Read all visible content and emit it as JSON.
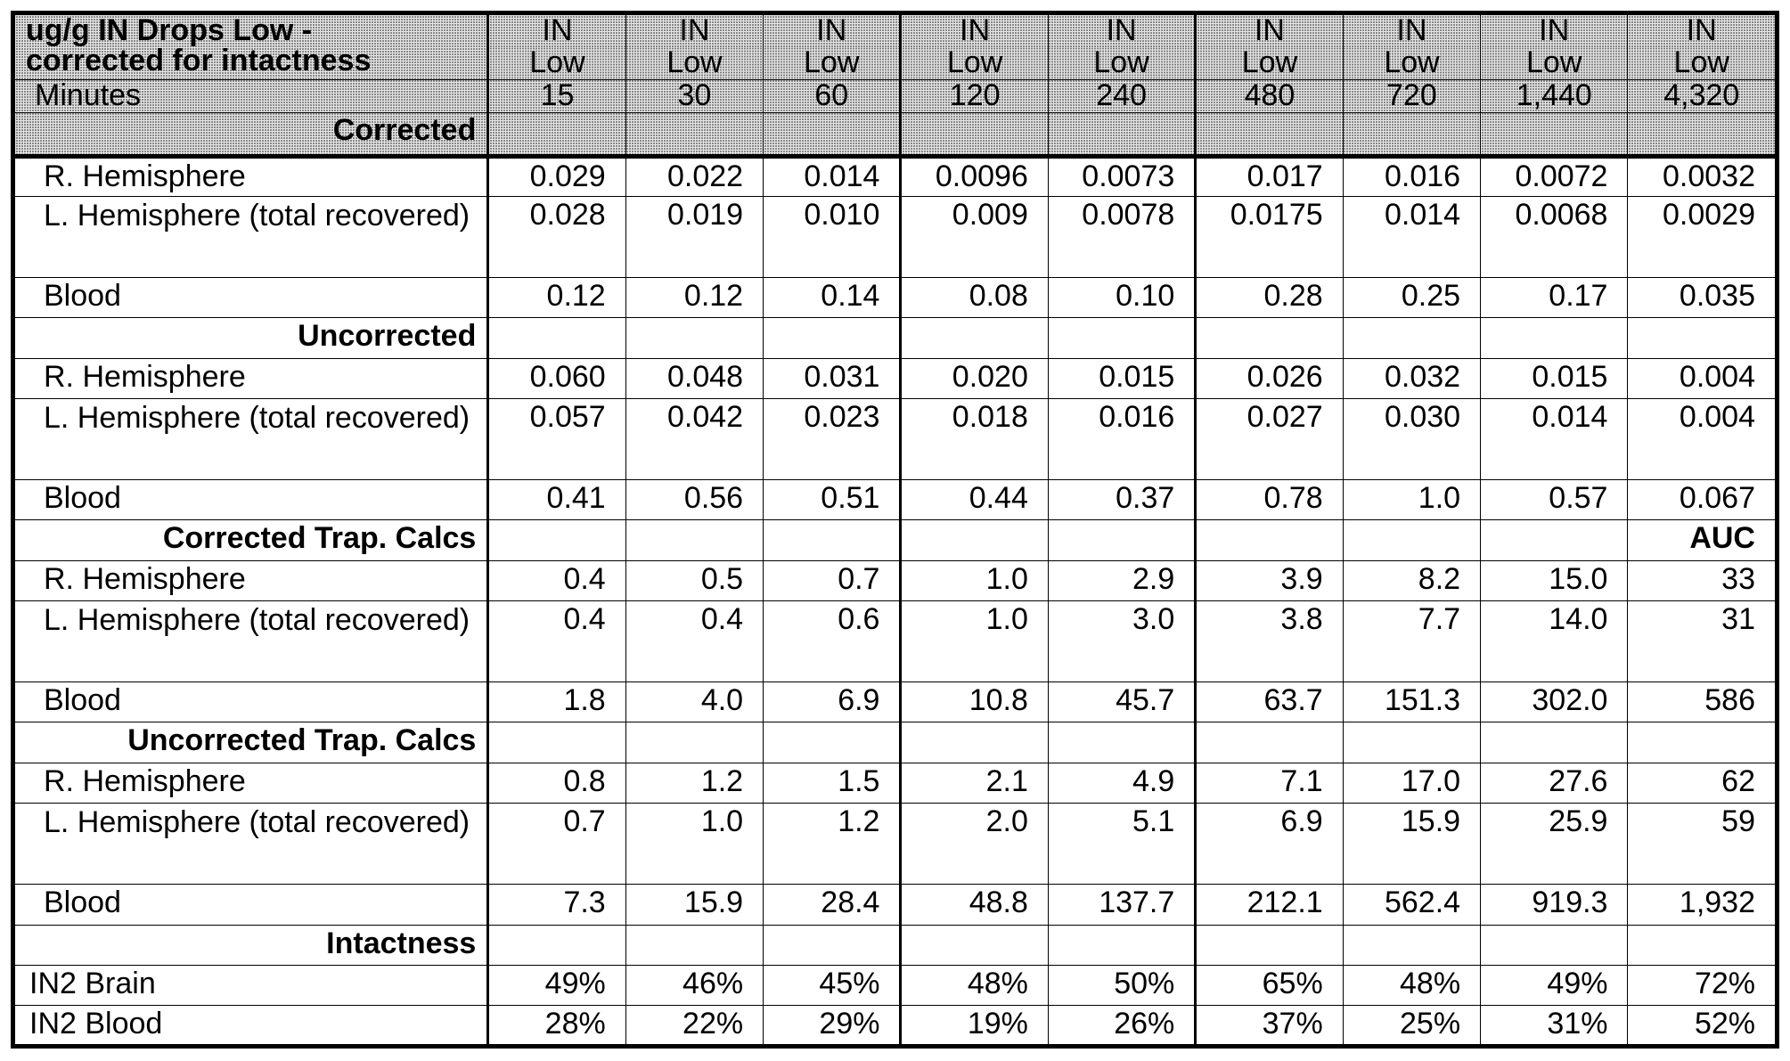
{
  "table": {
    "title_line1": "ug/g IN Drops Low -",
    "title_line2": "corrected for intactness",
    "minutes_label": "Minutes",
    "corrected_label": "Corrected",
    "group_line1": "IN",
    "group_line2": "Low",
    "minutes": [
      "15",
      "30",
      "60",
      "120",
      "240",
      "480",
      "720",
      "1,440",
      "4,320"
    ],
    "sections": [
      {
        "title": "Uncorrected",
        "auc": "",
        "rows": []
      }
    ],
    "corrected_rows": [
      {
        "label": "R. Hemisphere",
        "values": [
          "0.029",
          "0.022",
          "0.014",
          "0.0096",
          "0.0073",
          "0.017",
          "0.016",
          "0.0072",
          "0.0032"
        ]
      },
      {
        "label": "L. Hemisphere (total recovered)",
        "values": [
          "0.028",
          "0.019",
          "0.010",
          "0.009",
          "0.0078",
          "0.0175",
          "0.014",
          "0.0068",
          "0.0029"
        ]
      },
      {
        "label": "Blood",
        "values": [
          "0.12",
          "0.12",
          "0.14",
          "0.08",
          "0.10",
          "0.28",
          "0.25",
          "0.17",
          "0.035"
        ]
      }
    ],
    "uncorrected_title": "Uncorrected",
    "uncorrected_rows": [
      {
        "label": "R. Hemisphere",
        "values": [
          "0.060",
          "0.048",
          "0.031",
          "0.020",
          "0.015",
          "0.026",
          "0.032",
          "0.015",
          "0.004"
        ]
      },
      {
        "label": "L. Hemisphere (total recovered)",
        "values": [
          "0.057",
          "0.042",
          "0.023",
          "0.018",
          "0.016",
          "0.027",
          "0.030",
          "0.014",
          "0.004"
        ]
      },
      {
        "label": "Blood",
        "values": [
          "0.41",
          "0.56",
          "0.51",
          "0.44",
          "0.37",
          "0.78",
          "1.0",
          "0.57",
          "0.067"
        ]
      }
    ],
    "corrected_trap_title": "Corrected Trap. Calcs",
    "auc_label": "AUC",
    "corrected_trap_rows": [
      {
        "label": "R. Hemisphere",
        "values": [
          "0.4",
          "0.5",
          "0.7",
          "1.0",
          "2.9",
          "3.9",
          "8.2",
          "15.0",
          "33"
        ]
      },
      {
        "label": "L. Hemisphere (total recovered)",
        "values": [
          "0.4",
          "0.4",
          "0.6",
          "1.0",
          "3.0",
          "3.8",
          "7.7",
          "14.0",
          "31"
        ]
      },
      {
        "label": "Blood",
        "values": [
          "1.8",
          "4.0",
          "6.9",
          "10.8",
          "45.7",
          "63.7",
          "151.3",
          "302.0",
          "586"
        ]
      }
    ],
    "uncorrected_trap_title": "Uncorrected Trap. Calcs",
    "uncorrected_trap_rows": [
      {
        "label": "R. Hemisphere",
        "values": [
          "0.8",
          "1.2",
          "1.5",
          "2.1",
          "4.9",
          "7.1",
          "17.0",
          "27.6",
          "62"
        ]
      },
      {
        "label": "L. Hemisphere (total recovered)",
        "values": [
          "0.7",
          "1.0",
          "1.2",
          "2.0",
          "5.1",
          "6.9",
          "15.9",
          "25.9",
          "59"
        ]
      },
      {
        "label": "Blood",
        "values": [
          "7.3",
          "15.9",
          "28.4",
          "48.8",
          "137.7",
          "212.1",
          "562.4",
          "919.3",
          "1,932"
        ]
      }
    ],
    "intactness_title": "Intactness",
    "intactness_rows": [
      {
        "label": "IN2 Brain",
        "values": [
          "49%",
          "46%",
          "45%",
          "48%",
          "50%",
          "65%",
          "48%",
          "49%",
          "72%"
        ]
      },
      {
        "label": "IN2 Blood",
        "values": [
          "28%",
          "22%",
          "29%",
          "19%",
          "26%",
          "37%",
          "25%",
          "31%",
          "52%"
        ]
      }
    ]
  }
}
